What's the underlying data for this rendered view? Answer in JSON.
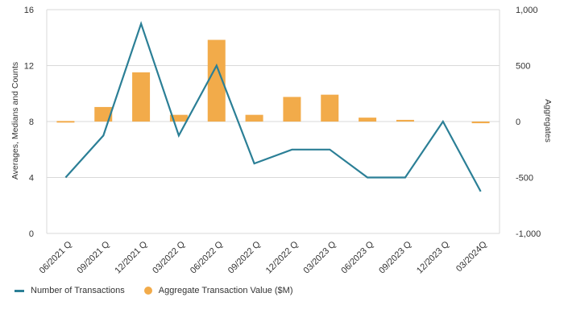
{
  "chart_data": {
    "type": "combo",
    "categories": [
      "06/2021 Q",
      "09/2021 Q",
      "12/2021 Q",
      "03/2022 Q",
      "06/2022 Q",
      "09/2022 Q",
      "12/2022 Q",
      "03/2023 Q",
      "06/2023 Q",
      "09/2023 Q",
      "12/2023 Q",
      "03/2024Q"
    ],
    "series": [
      {
        "name": "Number of Transactions",
        "type": "line",
        "axis": "left",
        "color": "#2b7f96",
        "values": [
          4,
          7,
          15,
          7,
          12,
          5,
          6,
          6,
          4,
          4,
          8,
          3
        ]
      },
      {
        "name": "Aggregate Transaction Value ($M)",
        "type": "bar",
        "axis": "right",
        "color": "#f2ab4a",
        "values": [
          5,
          130,
          440,
          60,
          730,
          60,
          220,
          240,
          35,
          15,
          0,
          -15
        ]
      }
    ],
    "left_axis": {
      "label": "Averages, Medians and Counts",
      "ylim": [
        0,
        16
      ],
      "ticks": [
        0,
        4,
        8,
        12,
        16
      ],
      "tick_labels": [
        "0",
        "4",
        "8",
        "12",
        "16"
      ]
    },
    "right_axis": {
      "label": "Aggregates",
      "ylim": [
        -1000,
        1000
      ],
      "ticks": [
        -1000,
        -500,
        0,
        500,
        1000
      ],
      "tick_labels": [
        "-1,000",
        "-500",
        "0",
        "500",
        "1,000"
      ]
    },
    "grid": true,
    "legend_position": "bottom-left"
  }
}
